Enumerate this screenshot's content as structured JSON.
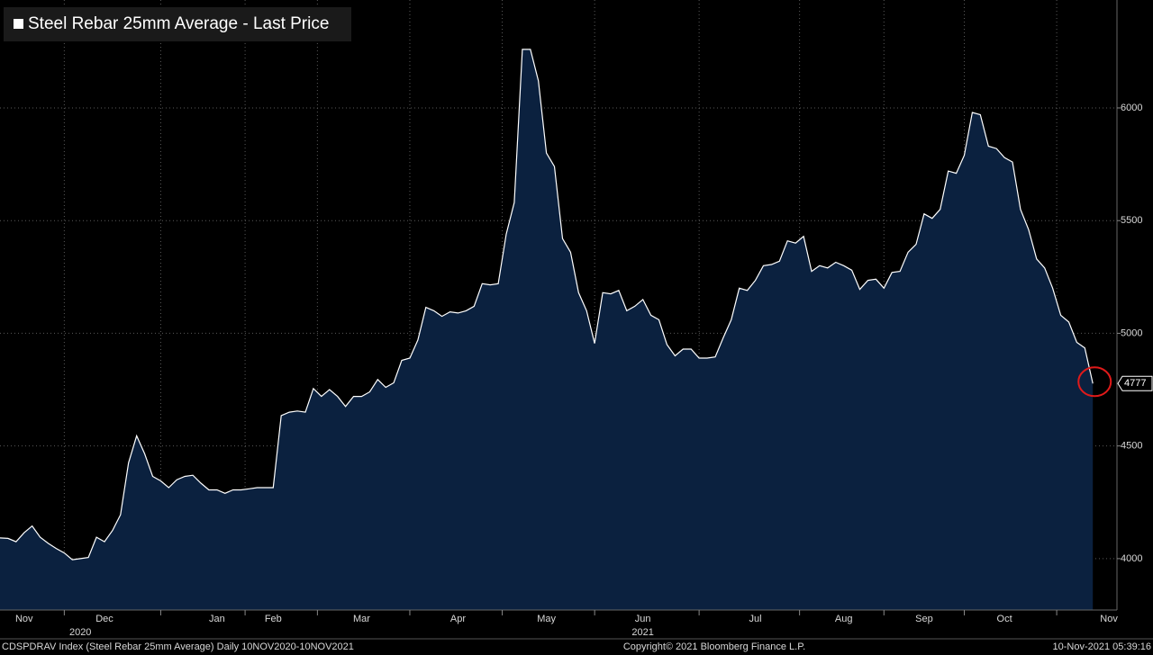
{
  "chart_data": {
    "type": "area",
    "title": "Steel Rebar 25mm Average - Last Price",
    "footer_left": "CDSPDRAV Index (Steel Rebar 25mm Average)  Daily 10NOV2020-10NOV2021",
    "footer_center": "Copyright© 2021 Bloomberg Finance L.P.",
    "footer_right": "10-Nov-2021 05:39:16",
    "categories": [
      null,
      null,
      null,
      "Nov",
      null,
      null,
      null,
      null,
      null,
      null,
      null,
      null,
      null,
      "Dec",
      null,
      null,
      null,
      null,
      null,
      null,
      null,
      null,
      null,
      null,
      null,
      null,
      null,
      "Jan",
      null,
      null,
      null,
      null,
      null,
      null,
      "Feb",
      null,
      null,
      null,
      null,
      null,
      null,
      null,
      null,
      null,
      null,
      "Mar",
      null,
      null,
      null,
      null,
      null,
      null,
      null,
      null,
      null,
      null,
      null,
      "Apr",
      null,
      null,
      null,
      null,
      null,
      null,
      null,
      null,
      null,
      null,
      "May",
      null,
      null,
      null,
      null,
      null,
      null,
      null,
      null,
      null,
      null,
      null,
      "Jun",
      null,
      null,
      null,
      null,
      null,
      null,
      null,
      null,
      null,
      null,
      null,
      null,
      null,
      "Jul",
      null,
      null,
      null,
      null,
      null,
      null,
      null,
      null,
      null,
      null,
      "Aug",
      null,
      null,
      null,
      null,
      null,
      null,
      null,
      null,
      null,
      "Sep",
      null,
      null,
      null,
      null,
      null,
      null,
      null,
      null,
      null,
      "Oct",
      null,
      null,
      null,
      null,
      null,
      null,
      null,
      null,
      null,
      null,
      null,
      null,
      "Nov",
      null
    ],
    "year_labels": [
      null,
      null,
      null,
      null,
      null,
      null,
      null,
      null,
      null,
      null,
      "2020",
      null,
      null,
      null,
      null,
      null,
      null,
      null,
      null,
      null,
      null,
      null,
      null,
      null,
      null,
      null,
      null,
      null,
      null,
      null,
      null,
      null,
      null,
      null,
      null,
      null,
      null,
      null,
      null,
      null,
      null,
      null,
      null,
      null,
      null,
      null,
      null,
      null,
      null,
      null,
      null,
      null,
      null,
      null,
      null,
      null,
      null,
      null,
      null,
      null,
      null,
      null,
      null,
      null,
      null,
      null,
      null,
      null,
      null,
      null,
      null,
      null,
      null,
      null,
      null,
      null,
      null,
      null,
      null,
      null,
      "2021",
      null,
      null,
      null,
      null,
      null,
      null,
      null,
      null,
      null,
      null,
      null,
      null,
      null,
      null,
      null,
      null,
      null,
      null,
      null,
      null,
      null,
      null,
      null,
      null,
      null,
      null,
      null,
      null,
      null,
      null,
      null,
      null,
      null,
      null,
      null,
      null,
      null,
      null,
      null,
      null,
      null,
      null,
      null,
      null,
      null,
      null,
      null,
      null,
      null,
      null,
      null,
      null,
      null,
      null,
      null,
      null,
      null,
      null,
      null
    ],
    "series": [
      {
        "name": "Steel Rebar 25mm Average - Last Price",
        "color": "#ffffff",
        "fill": "#0b213f",
        "values": [
          4092,
          4090,
          4075,
          4115,
          4145,
          4095,
          4068,
          4045,
          4025,
          3995,
          4000,
          4005,
          4095,
          4075,
          4125,
          4195,
          4425,
          4545,
          4465,
          4365,
          4345,
          4315,
          4350,
          4365,
          4370,
          4335,
          4305,
          4305,
          4290,
          4305,
          4305,
          4310,
          4315,
          4315,
          4315,
          4635,
          4650,
          4655,
          4650,
          4755,
          4720,
          4750,
          4720,
          4675,
          4720,
          4720,
          4740,
          4795,
          4760,
          4780,
          4880,
          4890,
          4970,
          5115,
          5100,
          5075,
          5095,
          5090,
          5100,
          5120,
          5220,
          5215,
          5220,
          5440,
          5580,
          6260,
          6260,
          6120,
          5800,
          5740,
          5420,
          5360,
          5180,
          5100,
          4955,
          5180,
          5175,
          5190,
          5100,
          5120,
          5150,
          5080,
          5060,
          4950,
          4900,
          4930,
          4930,
          4890,
          4890,
          4895,
          4980,
          5060,
          5200,
          5190,
          5235,
          5300,
          5305,
          5320,
          5410,
          5400,
          5430,
          5275,
          5300,
          5290,
          5315,
          5300,
          5280,
          5195,
          5235,
          5240,
          5200,
          5270,
          5275,
          5360,
          5395,
          5530,
          5510,
          5550,
          5720,
          5710,
          5790,
          5980,
          5970,
          5830,
          5820,
          5780,
          5760,
          5550,
          5460,
          5330,
          5290,
          5200,
          5080,
          5050,
          4960,
          4935,
          4777,
          null,
          null,
          null
        ]
      }
    ],
    "ylim": [
      3772,
      6479
    ],
    "yticks": [
      4000,
      4500,
      5000,
      5500,
      6000
    ],
    "grid": true
  }
}
